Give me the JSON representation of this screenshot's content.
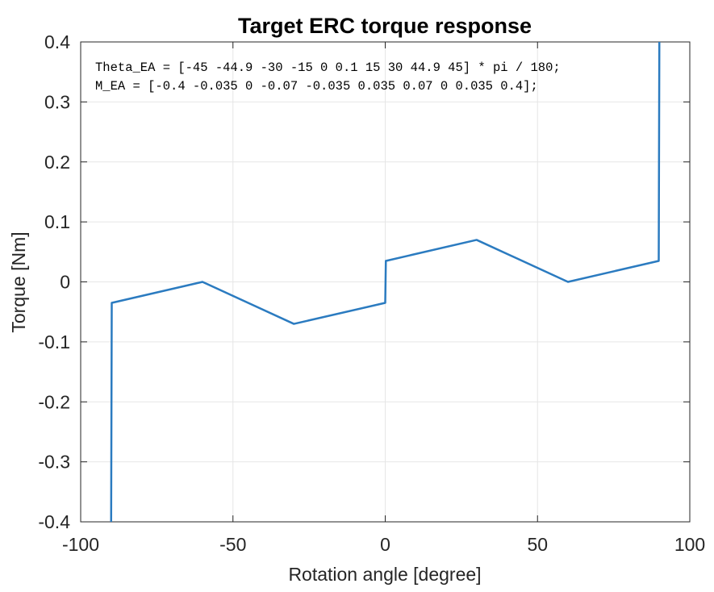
{
  "chart_data": {
    "type": "line",
    "title": "Target ERC torque response",
    "xlabel": "Rotation angle [degree]",
    "ylabel": "Torque [Nm]",
    "xlim": [
      -100,
      100
    ],
    "ylim": [
      -0.4,
      0.4
    ],
    "xticks": [
      -100,
      -50,
      0,
      50,
      100
    ],
    "xtick_labels": [
      "-100",
      "-50",
      "0",
      "50",
      "100"
    ],
    "yticks": [
      -0.4,
      -0.3,
      -0.2,
      -0.1,
      0,
      0.1,
      0.2,
      0.3,
      0.4
    ],
    "ytick_labels": [
      "-0.4",
      "-0.3",
      "-0.2",
      "-0.1",
      "0",
      "0.1",
      "0.2",
      "0.3",
      "0.4"
    ],
    "grid": true,
    "line_color": "#2b7bc0",
    "annotation_lines": [
      "Theta_EA = [-45 -44.9 -30 -15 0 0.1 15 30 44.9 45] * pi / 180;",
      "M_EA = [-0.4 -0.035 0 -0.07 -0.035 0.035 0.07 0 0.035 0.4];"
    ],
    "series": [
      {
        "x": [
          -90,
          -89.8,
          -60,
          -30,
          0,
          0.2,
          30,
          60,
          89.8,
          90
        ],
        "y": [
          -0.4,
          -0.035,
          0,
          -0.07,
          -0.035,
          0.035,
          0.07,
          0,
          0.035,
          0.4
        ]
      }
    ]
  }
}
